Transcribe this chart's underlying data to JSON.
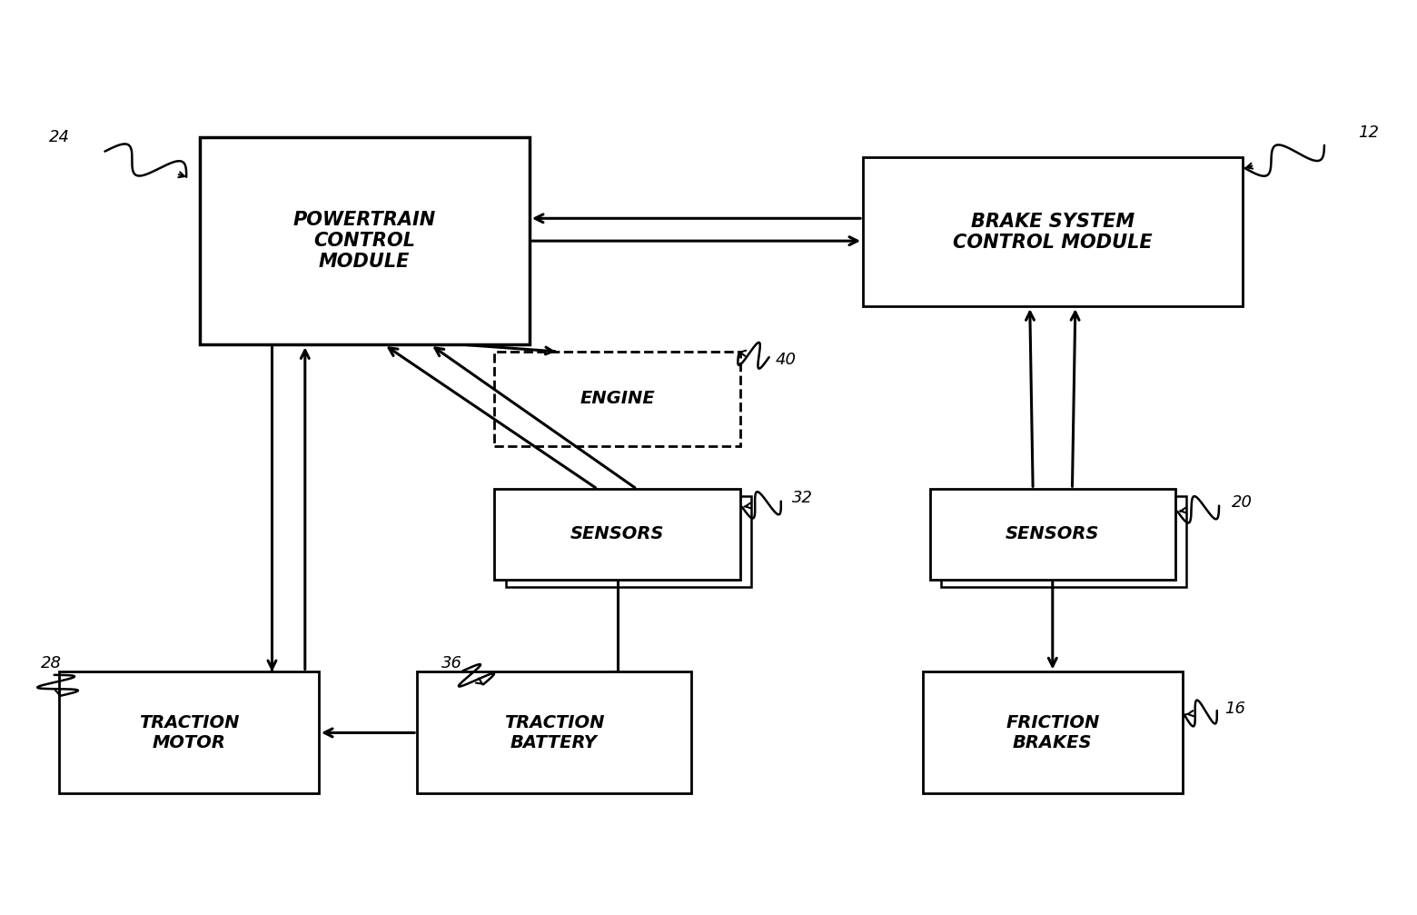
{
  "bg_color": "#ffffff",
  "boxes": {
    "pcm": [
      0.255,
      0.74,
      0.235,
      0.23
    ],
    "bscm": [
      0.745,
      0.75,
      0.27,
      0.165
    ],
    "engine": [
      0.435,
      0.565,
      0.175,
      0.105
    ],
    "sensors_l": [
      0.435,
      0.415,
      0.175,
      0.1
    ],
    "sensors_r": [
      0.745,
      0.415,
      0.175,
      0.1
    ],
    "traction_motor": [
      0.13,
      0.195,
      0.185,
      0.135
    ],
    "traction_battery": [
      0.39,
      0.195,
      0.195,
      0.135
    ],
    "friction_brakes": [
      0.745,
      0.195,
      0.185,
      0.135
    ]
  },
  "labels": {
    "pcm": "POWERTRAIN\nCONTROL\nMODULE",
    "bscm": "BRAKE SYSTEM\nCONTROL MODULE",
    "engine": "ENGINE",
    "sensors_l": "SENSORS",
    "sensors_r": "SENSORS",
    "traction_motor": "TRACTION\nMOTOR",
    "traction_battery": "TRACTION\nBATTERY",
    "friction_brakes": "FRICTION\nBRAKES"
  },
  "dashed": [
    "engine"
  ],
  "refs": {
    "pcm": "24",
    "bscm": "12",
    "engine": "40",
    "sensors_l": "32",
    "sensors_r": "20",
    "traction_motor": "28",
    "traction_battery": "36",
    "friction_brakes": "16"
  }
}
